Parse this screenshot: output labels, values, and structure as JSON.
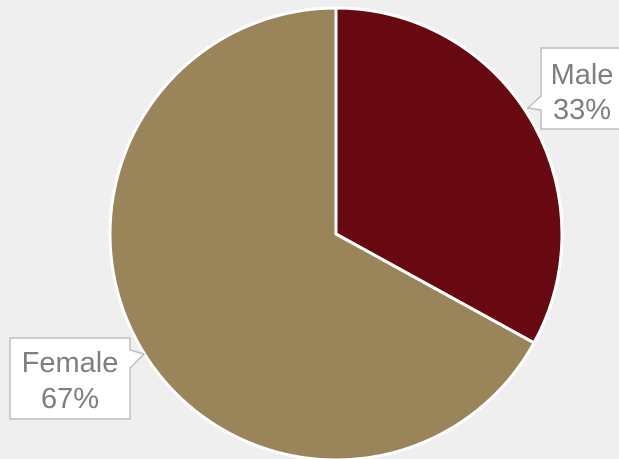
{
  "chart_data": {
    "type": "pie",
    "title": "",
    "slices": [
      {
        "label": "Male",
        "value": 33,
        "value_label": "33%",
        "color": "#680811"
      },
      {
        "label": "Female",
        "value": 67,
        "value_label": "67%",
        "color": "#9a8459"
      }
    ],
    "start_angle": "12 o'clock",
    "direction": "clockwise",
    "legend": "none",
    "data_labels": "callouts"
  },
  "colors": {
    "background": "#efefef",
    "slice_border": "#ffffff",
    "callout_border": "#bfbfbf",
    "callout_text": "#7f7f7f"
  }
}
